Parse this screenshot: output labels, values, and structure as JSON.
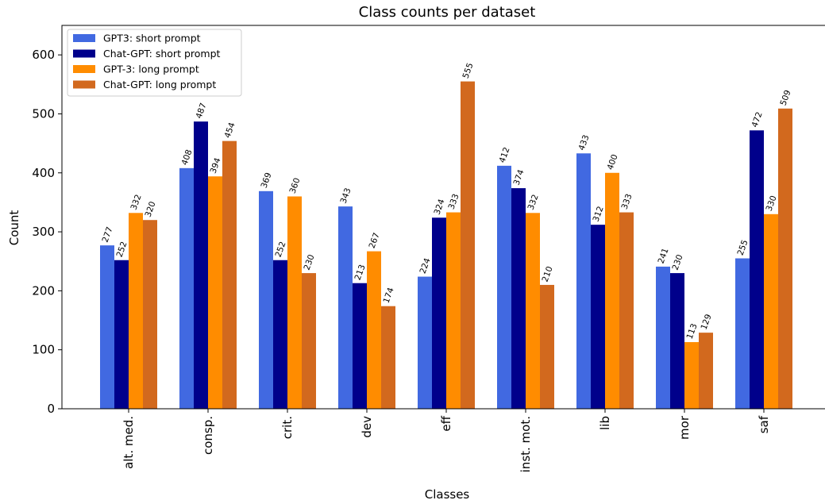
{
  "chart_data": {
    "type": "bar",
    "title": "Class counts per dataset",
    "xlabel": "Classes",
    "ylabel": "Count",
    "ylim": [
      0,
      650
    ],
    "yticks": [
      0,
      100,
      200,
      300,
      400,
      500,
      600
    ],
    "grid": false,
    "legend_position": "top-left",
    "categories": [
      "alt. med.",
      "consp.",
      "crit.",
      "dev",
      "eff",
      "inst. mot.",
      "lib",
      "mor",
      "saf"
    ],
    "series": [
      {
        "name": "GPT3: short prompt",
        "color": "#4169e1",
        "values": [
          277,
          408,
          369,
          343,
          224,
          412,
          433,
          241,
          255
        ]
      },
      {
        "name": "Chat-GPT: short prompt",
        "color": "#00008b",
        "values": [
          252,
          487,
          252,
          213,
          324,
          374,
          312,
          230,
          472
        ]
      },
      {
        "name": "GPT-3: long prompt",
        "color": "#ff8c00",
        "values": [
          332,
          394,
          360,
          267,
          333,
          332,
          400,
          113,
          330
        ]
      },
      {
        "name": "Chat-GPT: long prompt",
        "color": "#d2691e",
        "values": [
          320,
          454,
          230,
          174,
          555,
          210,
          333,
          129,
          509
        ]
      }
    ]
  }
}
